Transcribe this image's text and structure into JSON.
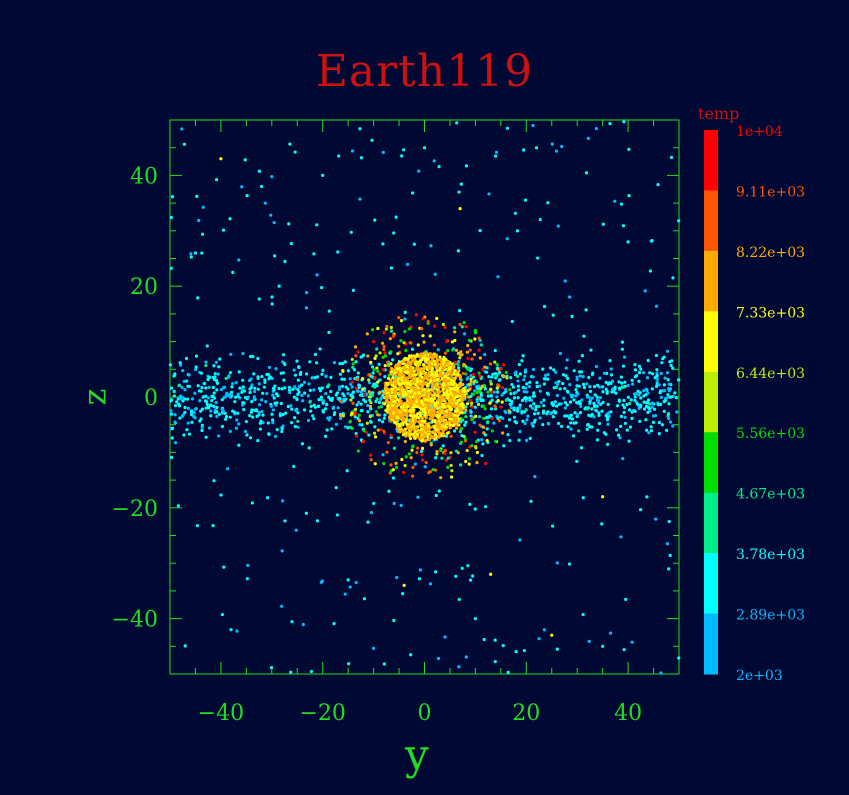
{
  "chart_data": {
    "type": "scatter",
    "title": "Earth119",
    "xlabel": "y",
    "ylabel": "z",
    "xlim": [
      -50,
      50
    ],
    "ylim": [
      -50,
      50
    ],
    "xticks": [
      -40,
      -20,
      0,
      20,
      40
    ],
    "yticks": [
      -40,
      -20,
      0,
      20,
      40
    ],
    "xtick_labels": [
      "−40",
      "−20",
      "0",
      "20",
      "40"
    ],
    "ytick_labels": [
      "−40",
      "−20",
      "0",
      "20",
      "40"
    ],
    "grid": false,
    "colorbar": {
      "label": "temp",
      "range": [
        2000,
        10000
      ],
      "tick_labels": [
        "1e+04",
        "9.11e+03",
        "8.22e+03",
        "7.33e+03",
        "6.44e+03",
        "5.56e+03",
        "4.67e+03",
        "3.78e+03",
        "2.89e+03",
        "2e+03"
      ],
      "bin_colors": [
        "#ff0000",
        "#ff5500",
        "#ffaa00",
        "#ffff00",
        "#bbee00",
        "#00dd00",
        "#00ee88",
        "#00ffff",
        "#00bbff"
      ]
    },
    "points": [
      {
        "x": 0,
        "y": 0,
        "temp": 7000,
        "note": "dense central body, radius ~8"
      },
      {
        "x": -40,
        "y": 43,
        "temp": 6500
      },
      {
        "x": 7,
        "y": 34,
        "temp": 7000
      },
      {
        "x": 25,
        "y": -43,
        "temp": 6500
      },
      {
        "x": 13,
        "y": -32,
        "temp": 7000
      },
      {
        "x": 35,
        "y": -18,
        "temp": 6500
      },
      {
        "x": -4,
        "y": -34,
        "temp": 6500
      },
      {
        "x": -32,
        "y": 38,
        "temp": 3500
      },
      {
        "x": -20,
        "y": 40,
        "temp": 3500
      },
      {
        "x": 0,
        "y": 45,
        "temp": 3500
      },
      {
        "x": 22,
        "y": 45,
        "temp": 3500
      },
      {
        "x": -45,
        "y": 26,
        "temp": 3500
      },
      {
        "x": 40,
        "y": 28,
        "temp": 3500
      },
      {
        "x": -38,
        "y": -42,
        "temp": 3500
      },
      {
        "x": 10,
        "y": -40,
        "temp": 3500
      },
      {
        "x": 35,
        "y": -45,
        "temp": 3500
      },
      {
        "x": -15,
        "y": -33,
        "temp": 3500
      },
      {
        "x": -10,
        "y": 10,
        "temp": 9500
      },
      {
        "x": 12,
        "y": -12,
        "temp": 9500
      },
      {
        "x": 15,
        "y": 5,
        "temp": 9500
      },
      {
        "x": -12,
        "y": -8,
        "temp": 9500
      },
      {
        "x": -8,
        "y": -12,
        "temp": 5000
      },
      {
        "x": 10,
        "y": 12,
        "temp": 5000
      },
      {
        "x": 14,
        "y": -8,
        "temp": 5000
      },
      {
        "x": -14,
        "y": 6,
        "temp": 5000
      }
    ]
  }
}
